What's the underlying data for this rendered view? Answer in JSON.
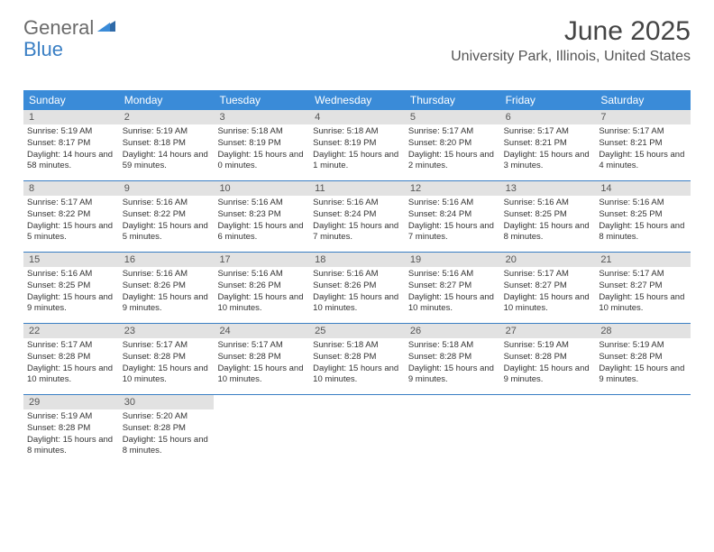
{
  "logo": {
    "text1": "General",
    "text2": "Blue"
  },
  "title": "June 2025",
  "location": "University Park, Illinois, United States",
  "colors": {
    "header_bg": "#3a8bd8",
    "accent": "#3a7fc4",
    "daynum_bg": "#e2e2e2",
    "text": "#333333",
    "logo_gray": "#6b6b6b"
  },
  "day_headers": [
    "Sunday",
    "Monday",
    "Tuesday",
    "Wednesday",
    "Thursday",
    "Friday",
    "Saturday"
  ],
  "weeks": [
    [
      {
        "n": "1",
        "sr": "Sunrise: 5:19 AM",
        "ss": "Sunset: 8:17 PM",
        "dl": "Daylight: 14 hours and 58 minutes."
      },
      {
        "n": "2",
        "sr": "Sunrise: 5:19 AM",
        "ss": "Sunset: 8:18 PM",
        "dl": "Daylight: 14 hours and 59 minutes."
      },
      {
        "n": "3",
        "sr": "Sunrise: 5:18 AM",
        "ss": "Sunset: 8:19 PM",
        "dl": "Daylight: 15 hours and 0 minutes."
      },
      {
        "n": "4",
        "sr": "Sunrise: 5:18 AM",
        "ss": "Sunset: 8:19 PM",
        "dl": "Daylight: 15 hours and 1 minute."
      },
      {
        "n": "5",
        "sr": "Sunrise: 5:17 AM",
        "ss": "Sunset: 8:20 PM",
        "dl": "Daylight: 15 hours and 2 minutes."
      },
      {
        "n": "6",
        "sr": "Sunrise: 5:17 AM",
        "ss": "Sunset: 8:21 PM",
        "dl": "Daylight: 15 hours and 3 minutes."
      },
      {
        "n": "7",
        "sr": "Sunrise: 5:17 AM",
        "ss": "Sunset: 8:21 PM",
        "dl": "Daylight: 15 hours and 4 minutes."
      }
    ],
    [
      {
        "n": "8",
        "sr": "Sunrise: 5:17 AM",
        "ss": "Sunset: 8:22 PM",
        "dl": "Daylight: 15 hours and 5 minutes."
      },
      {
        "n": "9",
        "sr": "Sunrise: 5:16 AM",
        "ss": "Sunset: 8:22 PM",
        "dl": "Daylight: 15 hours and 5 minutes."
      },
      {
        "n": "10",
        "sr": "Sunrise: 5:16 AM",
        "ss": "Sunset: 8:23 PM",
        "dl": "Daylight: 15 hours and 6 minutes."
      },
      {
        "n": "11",
        "sr": "Sunrise: 5:16 AM",
        "ss": "Sunset: 8:24 PM",
        "dl": "Daylight: 15 hours and 7 minutes."
      },
      {
        "n": "12",
        "sr": "Sunrise: 5:16 AM",
        "ss": "Sunset: 8:24 PM",
        "dl": "Daylight: 15 hours and 7 minutes."
      },
      {
        "n": "13",
        "sr": "Sunrise: 5:16 AM",
        "ss": "Sunset: 8:25 PM",
        "dl": "Daylight: 15 hours and 8 minutes."
      },
      {
        "n": "14",
        "sr": "Sunrise: 5:16 AM",
        "ss": "Sunset: 8:25 PM",
        "dl": "Daylight: 15 hours and 8 minutes."
      }
    ],
    [
      {
        "n": "15",
        "sr": "Sunrise: 5:16 AM",
        "ss": "Sunset: 8:25 PM",
        "dl": "Daylight: 15 hours and 9 minutes."
      },
      {
        "n": "16",
        "sr": "Sunrise: 5:16 AM",
        "ss": "Sunset: 8:26 PM",
        "dl": "Daylight: 15 hours and 9 minutes."
      },
      {
        "n": "17",
        "sr": "Sunrise: 5:16 AM",
        "ss": "Sunset: 8:26 PM",
        "dl": "Daylight: 15 hours and 10 minutes."
      },
      {
        "n": "18",
        "sr": "Sunrise: 5:16 AM",
        "ss": "Sunset: 8:26 PM",
        "dl": "Daylight: 15 hours and 10 minutes."
      },
      {
        "n": "19",
        "sr": "Sunrise: 5:16 AM",
        "ss": "Sunset: 8:27 PM",
        "dl": "Daylight: 15 hours and 10 minutes."
      },
      {
        "n": "20",
        "sr": "Sunrise: 5:17 AM",
        "ss": "Sunset: 8:27 PM",
        "dl": "Daylight: 15 hours and 10 minutes."
      },
      {
        "n": "21",
        "sr": "Sunrise: 5:17 AM",
        "ss": "Sunset: 8:27 PM",
        "dl": "Daylight: 15 hours and 10 minutes."
      }
    ],
    [
      {
        "n": "22",
        "sr": "Sunrise: 5:17 AM",
        "ss": "Sunset: 8:28 PM",
        "dl": "Daylight: 15 hours and 10 minutes."
      },
      {
        "n": "23",
        "sr": "Sunrise: 5:17 AM",
        "ss": "Sunset: 8:28 PM",
        "dl": "Daylight: 15 hours and 10 minutes."
      },
      {
        "n": "24",
        "sr": "Sunrise: 5:17 AM",
        "ss": "Sunset: 8:28 PM",
        "dl": "Daylight: 15 hours and 10 minutes."
      },
      {
        "n": "25",
        "sr": "Sunrise: 5:18 AM",
        "ss": "Sunset: 8:28 PM",
        "dl": "Daylight: 15 hours and 10 minutes."
      },
      {
        "n": "26",
        "sr": "Sunrise: 5:18 AM",
        "ss": "Sunset: 8:28 PM",
        "dl": "Daylight: 15 hours and 9 minutes."
      },
      {
        "n": "27",
        "sr": "Sunrise: 5:19 AM",
        "ss": "Sunset: 8:28 PM",
        "dl": "Daylight: 15 hours and 9 minutes."
      },
      {
        "n": "28",
        "sr": "Sunrise: 5:19 AM",
        "ss": "Sunset: 8:28 PM",
        "dl": "Daylight: 15 hours and 9 minutes."
      }
    ],
    [
      {
        "n": "29",
        "sr": "Sunrise: 5:19 AM",
        "ss": "Sunset: 8:28 PM",
        "dl": "Daylight: 15 hours and 8 minutes."
      },
      {
        "n": "30",
        "sr": "Sunrise: 5:20 AM",
        "ss": "Sunset: 8:28 PM",
        "dl": "Daylight: 15 hours and 8 minutes."
      },
      null,
      null,
      null,
      null,
      null
    ]
  ]
}
